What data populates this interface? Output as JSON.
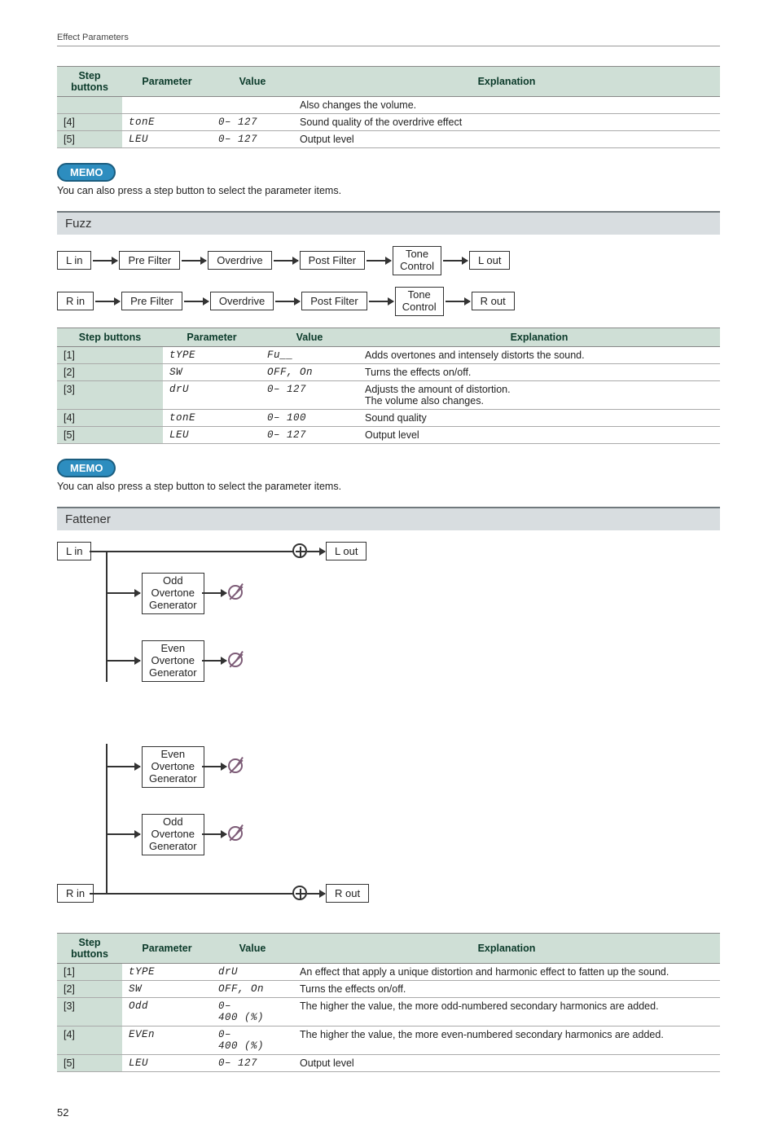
{
  "header": "Effect Parameters",
  "pageNumber": "52",
  "table1": {
    "headers": [
      "Step buttons",
      "Parameter",
      "Value",
      "Explanation"
    ],
    "rows": [
      {
        "step": "",
        "param": "",
        "value": "",
        "expl": "Also changes the volume."
      },
      {
        "step": "[4]",
        "param": "tonE",
        "value": "0– 127",
        "expl": "Sound quality of the overdrive effect"
      },
      {
        "step": "[5]",
        "param": "LEU",
        "value": "0– 127",
        "expl": "Output level"
      }
    ]
  },
  "memo": {
    "label": "MEMO",
    "text": "You can also press a step button to select the parameter items."
  },
  "fuzz": {
    "title": "Fuzz",
    "flowTop": [
      "L in",
      "Pre Filter",
      "Overdrive",
      "Post Filter",
      "Tone\nControl",
      "L out"
    ],
    "flowBot": [
      "R in",
      "Pre Filter",
      "Overdrive",
      "Post Filter",
      "Tone\nControl",
      "R out"
    ],
    "table": {
      "headers": [
        "Step buttons",
        "Parameter",
        "Value",
        "Explanation"
      ],
      "rows": [
        {
          "step": "[1]",
          "param": "tYPE",
          "value": "Fu__",
          "expl": "Adds overtones and intensely distorts the sound."
        },
        {
          "step": "[2]",
          "param": "SW",
          "value": "OFF, On",
          "expl": "Turns the effects on/off."
        },
        {
          "step": "[3]",
          "param": "drU",
          "value": "0– 127",
          "expl": "Adjusts the amount of distortion.\nThe volume also changes."
        },
        {
          "step": "[4]",
          "param": "tonE",
          "value": "0– 100",
          "expl": "Sound quality"
        },
        {
          "step": "[5]",
          "param": "LEU",
          "value": "0– 127",
          "expl": "Output level"
        }
      ]
    }
  },
  "fattener": {
    "title": "Fattener",
    "boxes": {
      "lin": "L in",
      "lout": "L out",
      "rin": "R in",
      "rout": "R out",
      "odd": "Odd\nOvertone\nGenerator",
      "even": "Even\nOvertone\nGenerator"
    },
    "table": {
      "headers": [
        "Step buttons",
        "Parameter",
        "Value",
        "Explanation"
      ],
      "rows": [
        {
          "step": "[1]",
          "param": "tYPE",
          "value": "drU",
          "expl": "An effect that apply a unique distortion and harmonic effect to fatten up the sound."
        },
        {
          "step": "[2]",
          "param": "SW",
          "value": "OFF, On",
          "expl": "Turns the effects on/off."
        },
        {
          "step": "[3]",
          "param": "Odd",
          "value": "0–\n400 (%)",
          "expl": "The higher the value, the more odd-numbered secondary harmonics are added."
        },
        {
          "step": "[4]",
          "param": "EVEn",
          "value": "0–\n400 (%)",
          "expl": "The higher the value, the more even-numbered secondary harmonics are added."
        },
        {
          "step": "[5]",
          "param": "LEU",
          "value": "0– 127",
          "expl": "Output level"
        }
      ]
    }
  }
}
